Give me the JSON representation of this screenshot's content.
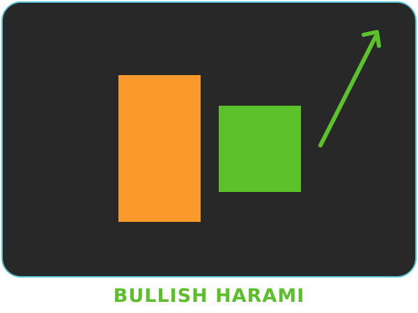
{
  "title": "BULLISH HARAMI",
  "colors": {
    "background": "#282828",
    "border": "#5bc6d6",
    "bearish_candle": "#fa9a2d",
    "bullish_candle": "#5cc22c",
    "arrow": "#5cc22c",
    "title": "#5bbf2a"
  },
  "icons": {
    "trend": "up-arrow-icon"
  }
}
